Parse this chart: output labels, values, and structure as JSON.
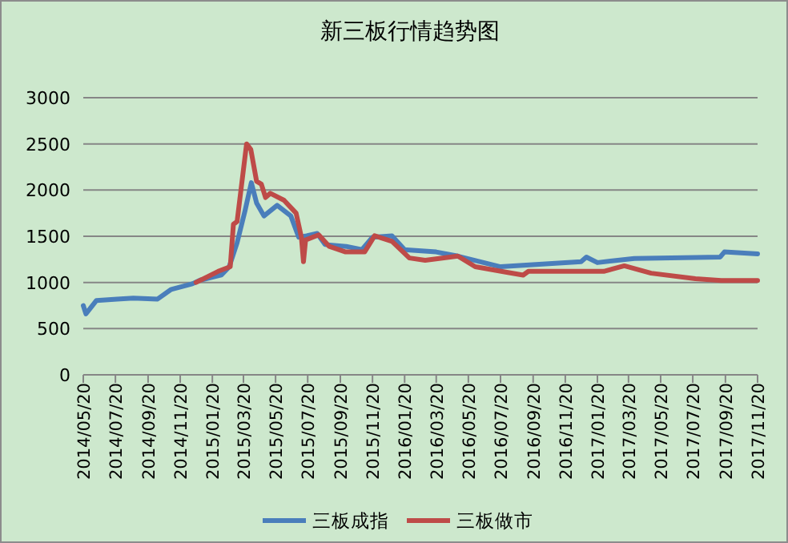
{
  "chart_data": {
    "type": "line",
    "title": "新三板行情趋势图",
    "xlim": [
      "2014-05-20",
      "2017-11-20"
    ],
    "xticks": [
      {
        "value": "2014-05-20",
        "label": "2014/05/20"
      },
      {
        "value": "2014-07-20",
        "label": "2014/07/20"
      },
      {
        "value": "2014-09-20",
        "label": "2014/09/20"
      },
      {
        "value": "2014-11-20",
        "label": "2014/11/20"
      },
      {
        "value": "2015-01-20",
        "label": "2015/01/20"
      },
      {
        "value": "2015-03-20",
        "label": "2015/03/20"
      },
      {
        "value": "2015-05-20",
        "label": "2015/05/20"
      },
      {
        "value": "2015-07-20",
        "label": "2015/07/20"
      },
      {
        "value": "2015-09-20",
        "label": "2015/09/20"
      },
      {
        "value": "2015-11-20",
        "label": "2015/11/20"
      },
      {
        "value": "2016-01-20",
        "label": "2016/01/20"
      },
      {
        "value": "2016-03-20",
        "label": "2016/03/20"
      },
      {
        "value": "2016-05-20",
        "label": "2016/05/20"
      },
      {
        "value": "2016-07-20",
        "label": "2016/07/20"
      },
      {
        "value": "2016-09-20",
        "label": "2016/09/20"
      },
      {
        "value": "2016-11-20",
        "label": "2016/11/20"
      },
      {
        "value": "2017-01-20",
        "label": "2017/01/20"
      },
      {
        "value": "2017-03-20",
        "label": "2017/03/20"
      },
      {
        "value": "2017-05-20",
        "label": "2017/05/20"
      },
      {
        "value": "2017-07-20",
        "label": "2017/07/20"
      },
      {
        "value": "2017-09-20",
        "label": "2017/09/20"
      },
      {
        "value": "2017-11-20",
        "label": "2017/11/20"
      }
    ],
    "ylim": [
      0,
      3000
    ],
    "yticks": [
      0,
      500,
      1000,
      1500,
      2000,
      2500,
      3000
    ],
    "grid": "y",
    "legend": "bottom",
    "series": [
      {
        "name": "三板成指",
        "color": "#4a7ebb",
        "x": [
          "2014-05-20",
          "2014-05-25",
          "2014-06-14",
          "2014-07-23",
          "2014-08-23",
          "2014-10-08",
          "2014-11-03",
          "2014-12-13",
          "2014-12-28",
          "2015-02-06",
          "2015-02-21",
          "2015-03-08",
          "2015-03-23",
          "2015-04-04",
          "2015-04-14",
          "2015-04-28",
          "2015-05-23",
          "2015-06-18",
          "2015-07-03",
          "2015-07-18",
          "2015-08-07",
          "2015-08-22",
          "2015-10-01",
          "2015-10-31",
          "2015-11-20",
          "2015-12-27",
          "2016-01-20",
          "2016-03-20",
          "2016-04-30",
          "2016-07-20",
          "2016-12-20",
          "2016-12-30",
          "2017-01-20",
          "2017-03-31",
          "2017-09-10",
          "2017-09-18",
          "2017-11-20"
        ],
        "values": [
          750,
          660,
          805,
          820,
          830,
          820,
          925,
          985,
          1025,
          1080,
          1170,
          1430,
          1775,
          2080,
          1860,
          1720,
          1835,
          1720,
          1490,
          1505,
          1530,
          1410,
          1390,
          1355,
          1490,
          1505,
          1355,
          1330,
          1285,
          1170,
          1225,
          1275,
          1215,
          1260,
          1275,
          1330,
          1310
        ]
      },
      {
        "name": "三板做市",
        "color": "#be4b48",
        "x": [
          "2014-12-20",
          "2015-01-31",
          "2015-02-23",
          "2015-03-01",
          "2015-03-08",
          "2015-03-26",
          "2015-04-03",
          "2015-04-14",
          "2015-04-23",
          "2015-05-01",
          "2015-05-10",
          "2015-06-05",
          "2015-06-28",
          "2015-07-08",
          "2015-07-12",
          "2015-07-16",
          "2015-08-10",
          "2015-08-30",
          "2015-09-30",
          "2015-11-05",
          "2015-11-24",
          "2015-12-27",
          "2016-01-29",
          "2016-02-28",
          "2016-04-30",
          "2016-06-02",
          "2016-08-01",
          "2016-09-01",
          "2016-09-11",
          "2016-12-20",
          "2017-02-01",
          "2017-03-12",
          "2017-05-02",
          "2017-07-25",
          "2017-09-12",
          "2017-11-20"
        ],
        "values": [
          1000,
          1120,
          1170,
          1630,
          1660,
          2500,
          2440,
          2095,
          2065,
          1920,
          1965,
          1890,
          1750,
          1490,
          1225,
          1460,
          1515,
          1390,
          1330,
          1330,
          1505,
          1445,
          1265,
          1240,
          1285,
          1170,
          1110,
          1080,
          1120,
          1120,
          1120,
          1180,
          1100,
          1040,
          1020,
          1020
        ]
      }
    ]
  }
}
